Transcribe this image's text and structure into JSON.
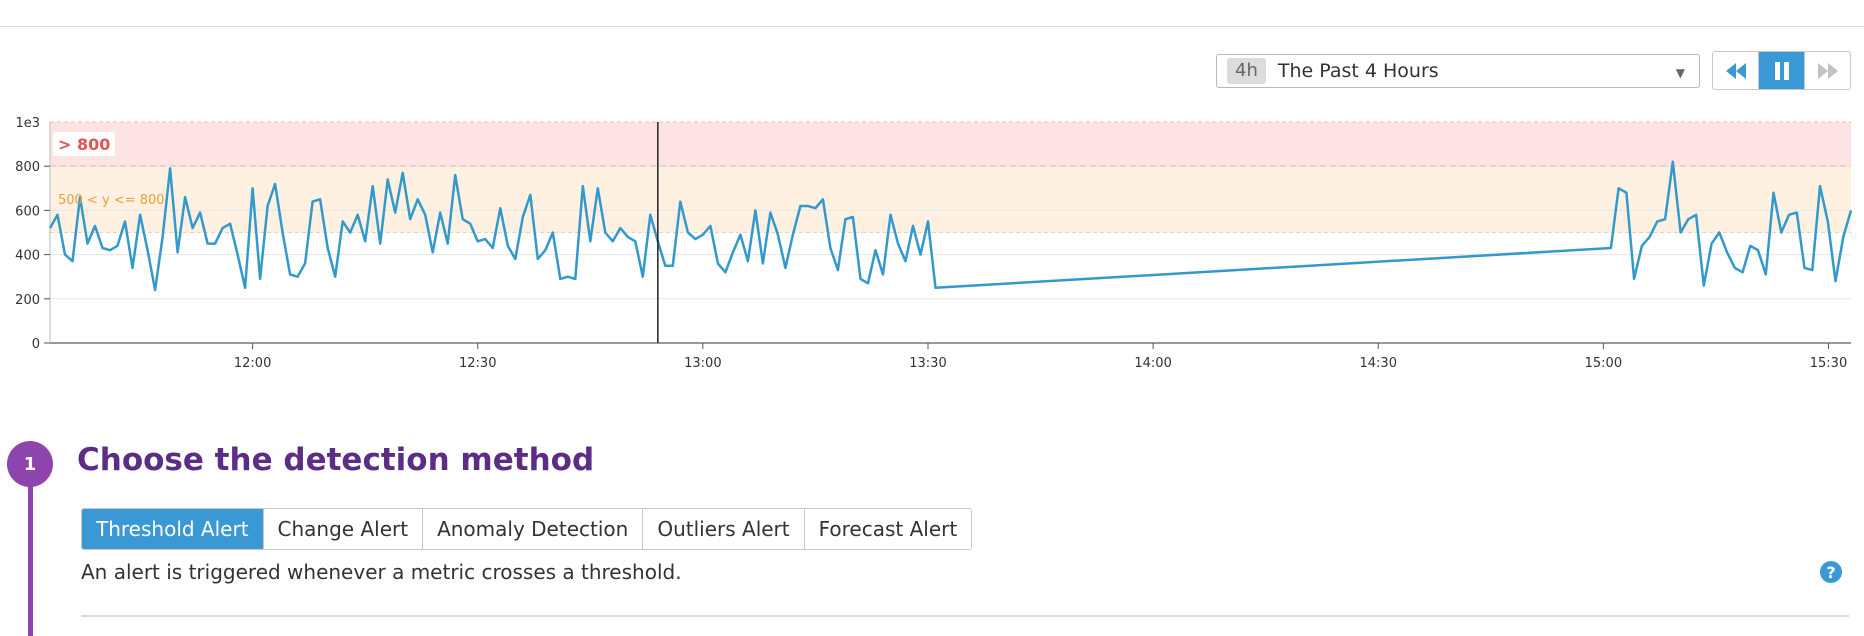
{
  "timeframe": {
    "badge": "4h",
    "label": "The Past 4 Hours"
  },
  "playback": {
    "icons": [
      "rewind-icon",
      "pause-icon",
      "fast-forward-icon"
    ],
    "active": "pause"
  },
  "colors": {
    "series": "#3399cc",
    "alert_band": "#fde3e3",
    "warning_band": "#fff1e2",
    "alert_text": "#e05555",
    "warning_text": "#f0a030",
    "accent": "#3a99d4",
    "step": "#8e44ad",
    "title": "#5b2d86"
  },
  "chart_data": {
    "type": "line",
    "y_multiplier_label": "1e3",
    "ylim": [
      0,
      1000
    ],
    "y_ticks": [
      0,
      200,
      400,
      600,
      800
    ],
    "x_ticks": [
      "12:00",
      "12:30",
      "13:00",
      "13:30",
      "14:00",
      "14:30",
      "15:00",
      "15:30"
    ],
    "x_range": [
      "11:33",
      "15:33"
    ],
    "grid": true,
    "thresholds": {
      "alert": {
        "label": "> 800",
        "value": 800
      },
      "warning": {
        "label": "500 < y <= 800",
        "value": 500
      }
    },
    "cursor_time": "12:54",
    "series": [
      {
        "segments": [
          {
            "start": "11:33",
            "end": "13:31",
            "values": [
              520,
              580,
              400,
              370,
              660,
              450,
              530,
              430,
              420,
              440,
              550,
              340,
              580,
              420,
              240,
              480,
              790,
              410,
              660,
              520,
              590,
              450,
              450,
              520,
              540,
              400,
              250,
              700,
              290,
              620,
              720,
              500,
              310,
              300,
              360,
              640,
              650,
              430,
              300,
              550,
              500,
              580,
              460,
              710,
              450,
              740,
              590,
              770,
              560,
              650,
              580,
              410,
              590,
              450,
              760,
              560,
              540,
              460,
              470,
              430,
              610,
              440,
              380,
              570,
              670,
              380,
              420,
              500,
              290,
              300,
              290,
              710,
              460,
              700,
              500,
              460,
              520,
              480,
              460,
              300,
              580,
              460,
              350,
              350,
              640,
              500,
              470,
              490,
              530,
              360,
              320,
              410,
              490,
              370,
              600,
              360,
              590,
              490,
              340,
              490,
              620,
              620,
              610,
              650,
              430,
              330,
              560,
              570,
              290,
              270,
              420,
              310,
              580,
              450,
              370,
              530,
              400,
              550,
              250
            ]
          },
          {
            "start": "15:01",
            "end": "15:33",
            "values": [
              430,
              700,
              680,
              290,
              440,
              480,
              550,
              560,
              820,
              500,
              560,
              580,
              260,
              450,
              500,
              410,
              340,
              320,
              440,
              420,
              310,
              680,
              500,
              580,
              590,
              340,
              330,
              710,
              550,
              280,
              480,
              600
            ]
          }
        ]
      }
    ]
  },
  "section": {
    "step_number": "1",
    "title": "Choose the detection method",
    "tabs": [
      "Threshold Alert",
      "Change Alert",
      "Anomaly Detection",
      "Outliers Alert",
      "Forecast Alert"
    ],
    "active_tab": 0,
    "description": "An alert is triggered whenever a metric crosses a threshold.",
    "help_label": "?"
  }
}
